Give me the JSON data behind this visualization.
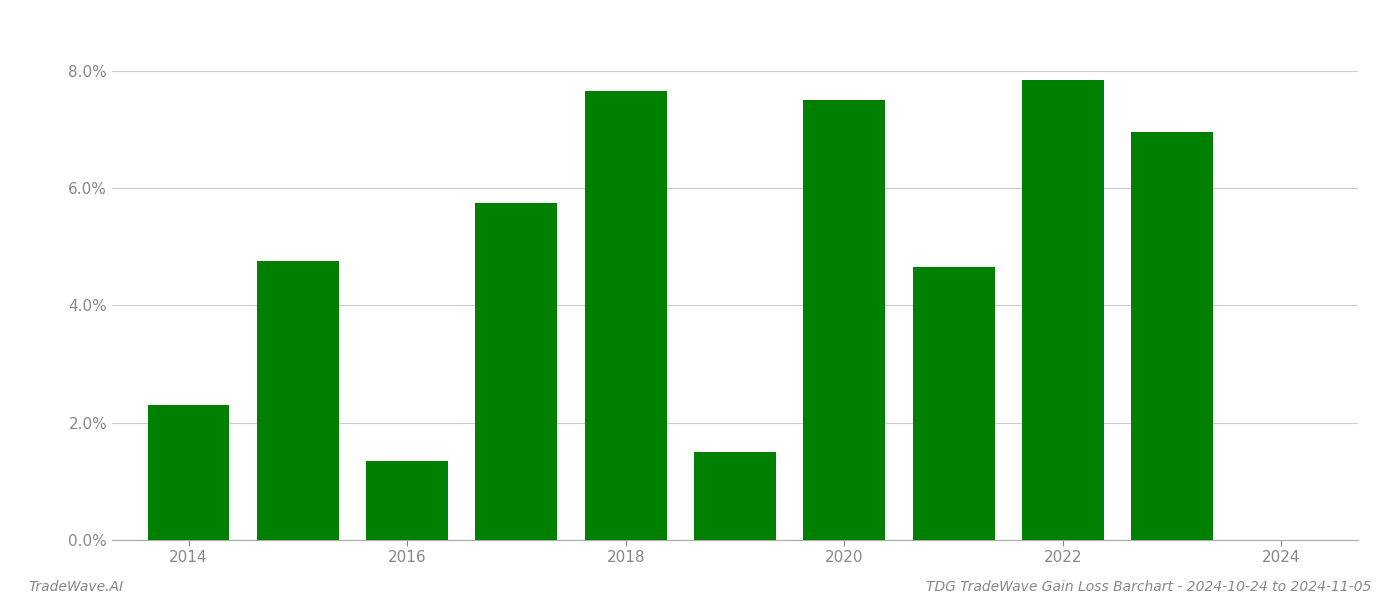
{
  "years": [
    2014,
    2015,
    2016,
    2017,
    2018,
    2019,
    2020,
    2021,
    2022,
    2023
  ],
  "values": [
    0.023,
    0.0475,
    0.0135,
    0.0575,
    0.0765,
    0.015,
    0.075,
    0.0465,
    0.0785,
    0.0695
  ],
  "bar_color": "#008000",
  "background_color": "#ffffff",
  "grid_color": "#cccccc",
  "title": "TDG TradeWave Gain Loss Barchart - 2024-10-24 to 2024-11-05",
  "watermark": "TradeWave.AI",
  "ylim": [
    0,
    0.088
  ],
  "yticks": [
    0.0,
    0.02,
    0.04,
    0.06,
    0.08
  ],
  "ytick_labels": [
    "0.0%",
    "2.0%",
    "4.0%",
    "6.0%",
    "8.0%"
  ],
  "xticks": [
    2014,
    2016,
    2018,
    2020,
    2022,
    2024
  ],
  "xtick_labels": [
    "2014",
    "2016",
    "2018",
    "2020",
    "2022",
    "2024"
  ],
  "tick_fontsize": 11,
  "title_fontsize": 10,
  "watermark_fontsize": 10,
  "bar_width": 0.75,
  "xlim": [
    2013.3,
    2024.7
  ],
  "axis_label_color": "#888888",
  "title_color": "#888888",
  "watermark_color": "#888888",
  "spine_color": "#aaaaaa",
  "grid_linewidth": 0.8
}
